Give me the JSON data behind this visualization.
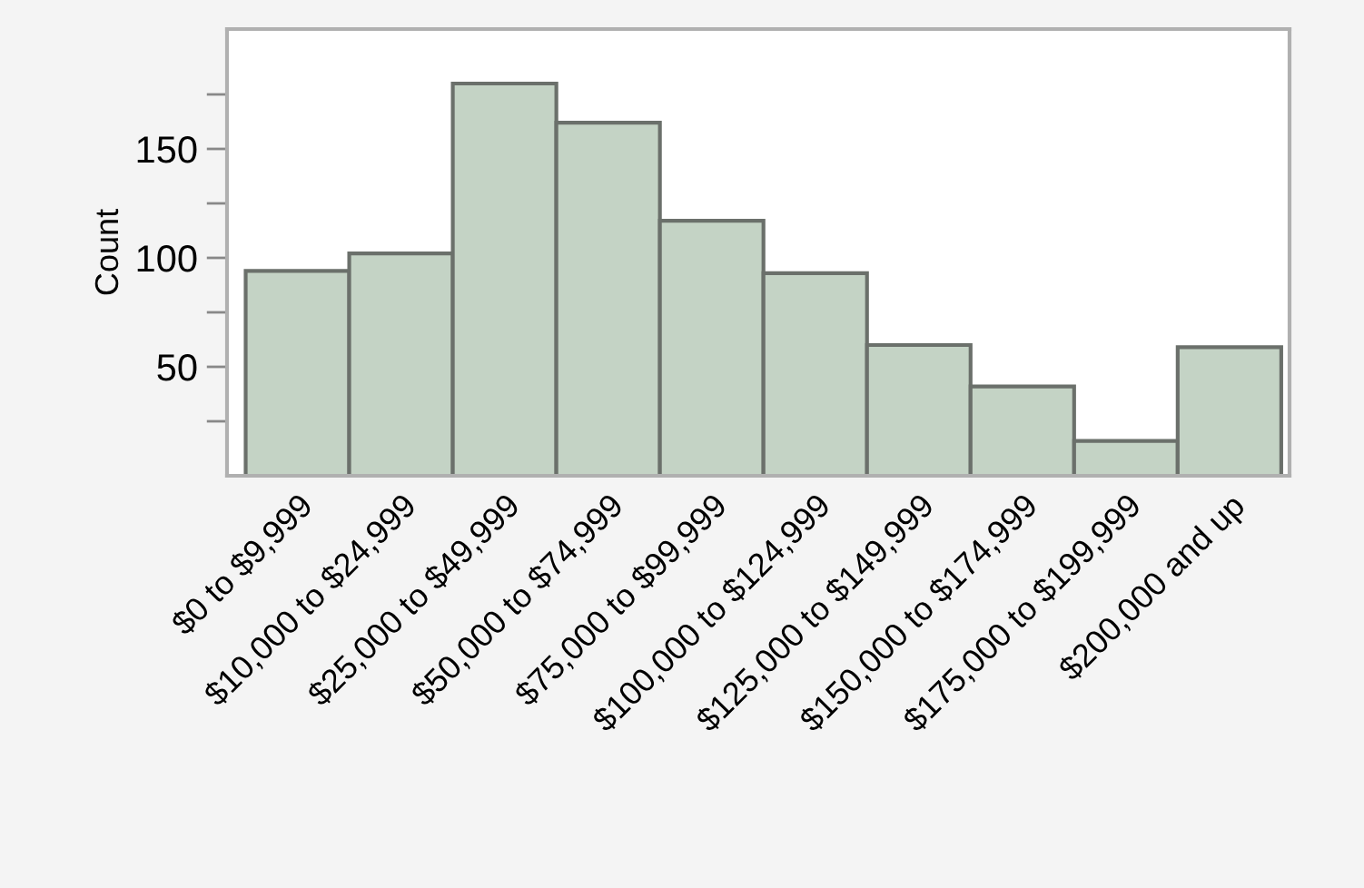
{
  "chart_data": {
    "type": "bar",
    "ylabel": "Count",
    "categories": [
      "$0 to $9,999",
      "$10,000 to $24,999",
      "$25,000 to $49,999",
      "$50,000 to $74,999",
      "$75,000 to $99,999",
      "$100,000 to $124,999",
      "$125,000 to $149,999",
      "$150,000 to $174,999",
      "$175,000 to $199,999",
      "$200,000 and up"
    ],
    "values": [
      94,
      102,
      180,
      162,
      117,
      93,
      60,
      41,
      16,
      59
    ],
    "color": "#c4d3c5",
    "ylim": [
      0,
      205
    ],
    "yticks": [
      {
        "value": 25,
        "label": null
      },
      50,
      {
        "value": 75,
        "label": null
      },
      100,
      {
        "value": 125,
        "label": null
      },
      150,
      {
        "value": 175,
        "label": null
      }
    ],
    "grid": false,
    "legend": false
  }
}
